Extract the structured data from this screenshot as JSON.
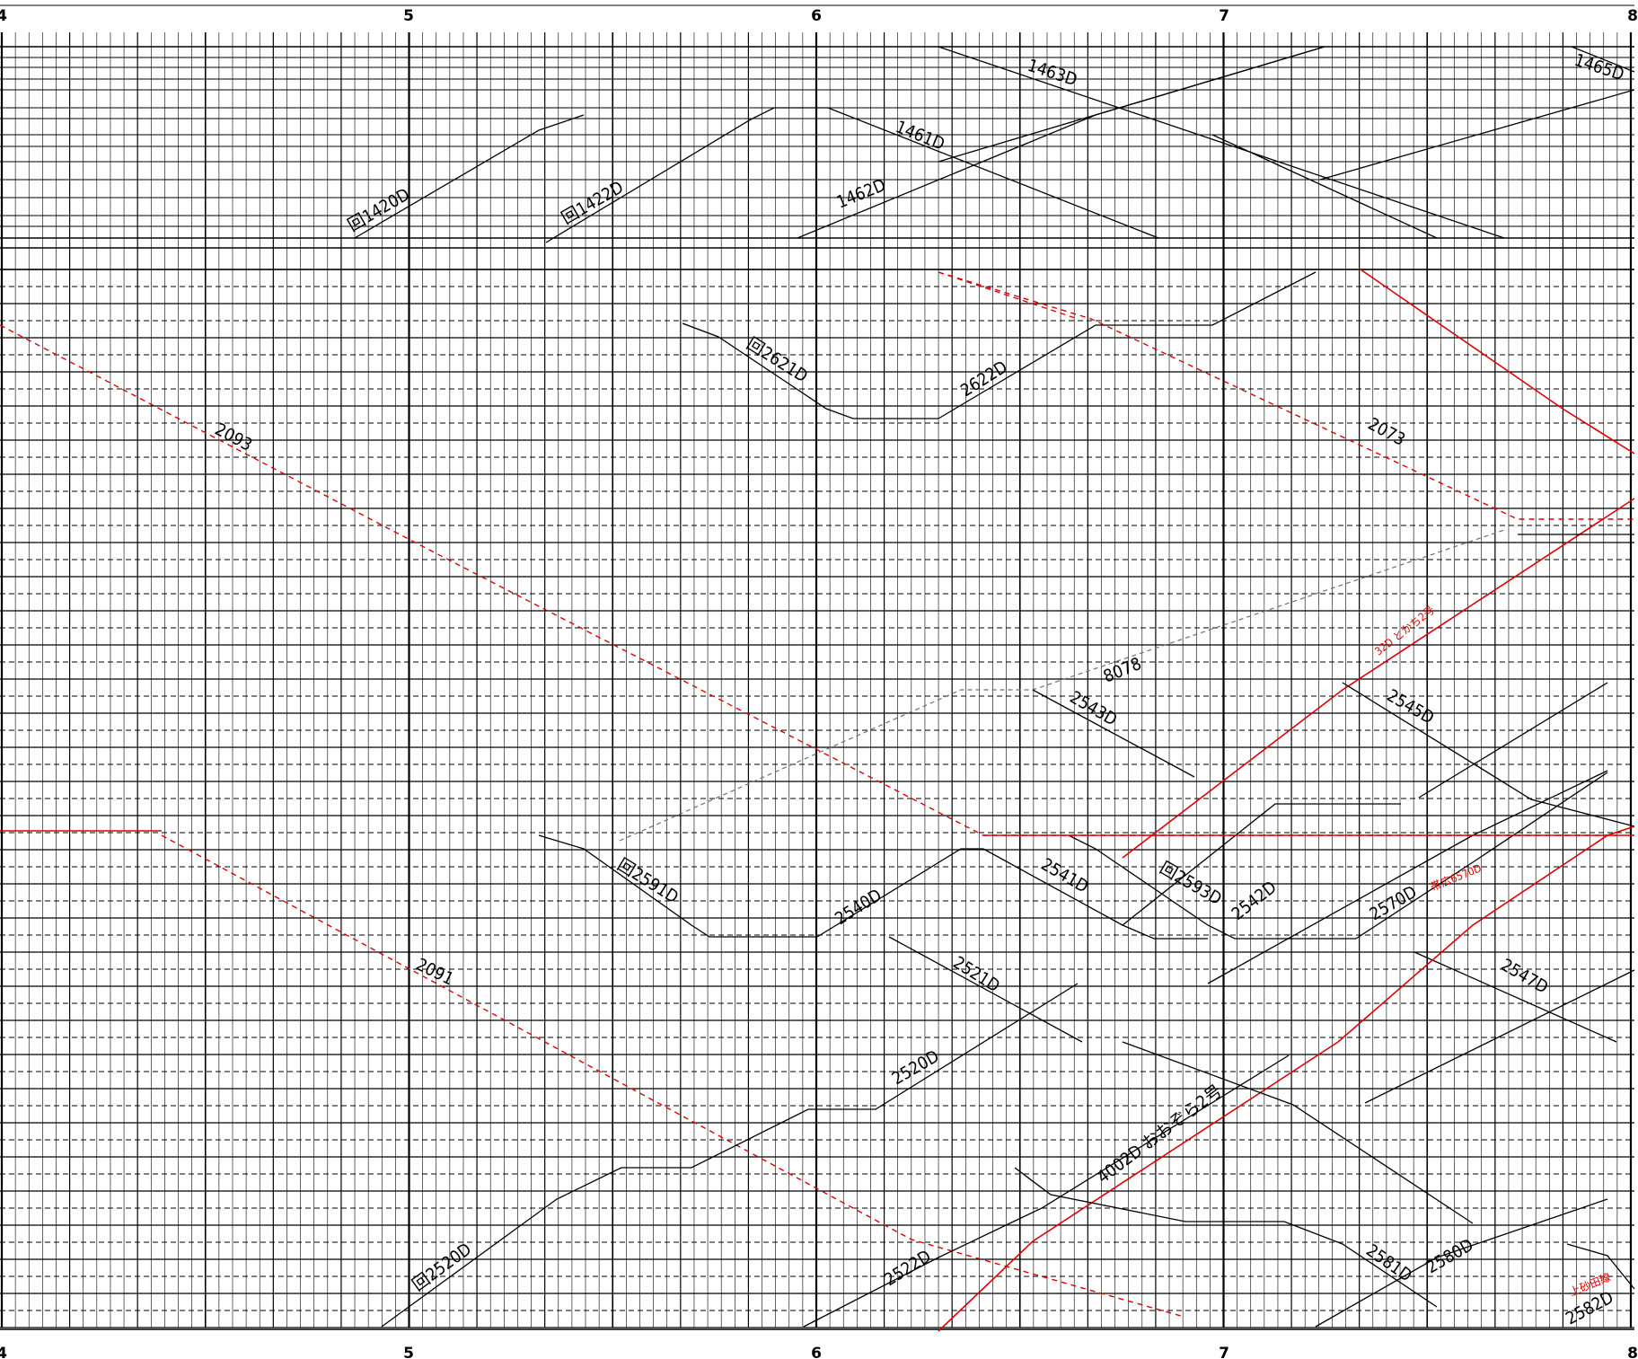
{
  "hours": [
    "4",
    "5",
    "6",
    "7",
    "8"
  ],
  "colors": {
    "grid": "#000000",
    "black_line": "#000000",
    "red_line": "#e00000",
    "gray_line": "#707070"
  },
  "trains": [
    {
      "id": "t-kai1420d",
      "label": "回1420D",
      "color": "black",
      "style": "solid"
    },
    {
      "id": "t-kai1422d",
      "label": "回1422D",
      "color": "black",
      "style": "solid"
    },
    {
      "id": "t-1461d",
      "label": "1461D",
      "color": "black",
      "style": "solid"
    },
    {
      "id": "t-1462d",
      "label": "1462D",
      "color": "black",
      "style": "solid"
    },
    {
      "id": "t-1463d",
      "label": "1463D",
      "color": "black",
      "style": "solid"
    },
    {
      "id": "t-1465d",
      "label": "1465D",
      "color": "black",
      "style": "solid"
    },
    {
      "id": "t-kai2621d",
      "label": "回2621D",
      "color": "black",
      "style": "solid"
    },
    {
      "id": "t-2622d",
      "label": "2622D",
      "color": "black",
      "style": "solid"
    },
    {
      "id": "t-2093",
      "label": "2093",
      "color": "red",
      "style": "dashed"
    },
    {
      "id": "t-2073",
      "label": "2073",
      "color": "red",
      "style": "dashed"
    },
    {
      "id": "t-2091",
      "label": "2091",
      "color": "red",
      "style": "dashed"
    },
    {
      "id": "t-8078",
      "label": "8078",
      "color": "gray",
      "style": "dashed"
    },
    {
      "id": "t-32d",
      "label": "32D とかち2号",
      "color": "red",
      "style": "solid"
    },
    {
      "id": "t-2543d",
      "label": "2543D",
      "color": "black",
      "style": "solid"
    },
    {
      "id": "t-2545d",
      "label": "2545D",
      "color": "black",
      "style": "solid"
    },
    {
      "id": "t-kai2591d",
      "label": "回2591D",
      "color": "black",
      "style": "solid"
    },
    {
      "id": "t-2540d",
      "label": "2540D",
      "color": "black",
      "style": "solid"
    },
    {
      "id": "t-2541d",
      "label": "2541D",
      "color": "black",
      "style": "solid"
    },
    {
      "id": "t-kai2593d",
      "label": "回2593D",
      "color": "black",
      "style": "solid"
    },
    {
      "id": "t-2542d",
      "label": "2542D",
      "color": "black",
      "style": "solid"
    },
    {
      "id": "t-2570d",
      "label": "2570D",
      "color": "black",
      "style": "solid"
    },
    {
      "id": "t-2521d",
      "label": "2521D",
      "color": "black",
      "style": "solid"
    },
    {
      "id": "t-2547d",
      "label": "2547D",
      "color": "black",
      "style": "solid"
    },
    {
      "id": "t-2520d",
      "label": "2520D",
      "color": "black",
      "style": "solid"
    },
    {
      "id": "t-4002d",
      "label": "4002D おおぞら2号",
      "color": "red",
      "style": "solid"
    },
    {
      "id": "t-kai2520d",
      "label": "回2520D",
      "color": "black",
      "style": "solid"
    },
    {
      "id": "t-2522d",
      "label": "2522D",
      "color": "black",
      "style": "solid"
    },
    {
      "id": "t-2581d",
      "label": "2581D",
      "color": "black",
      "style": "solid"
    },
    {
      "id": "t-2580d",
      "label": "2580D",
      "color": "black",
      "style": "solid"
    },
    {
      "id": "t-2582d",
      "label": "2582D",
      "color": "black",
      "style": "solid"
    }
  ],
  "notes": [
    {
      "id": "note-2570d",
      "text": "帯広6570D"
    },
    {
      "id": "note-2582d",
      "text": "上砂田線"
    }
  ]
}
